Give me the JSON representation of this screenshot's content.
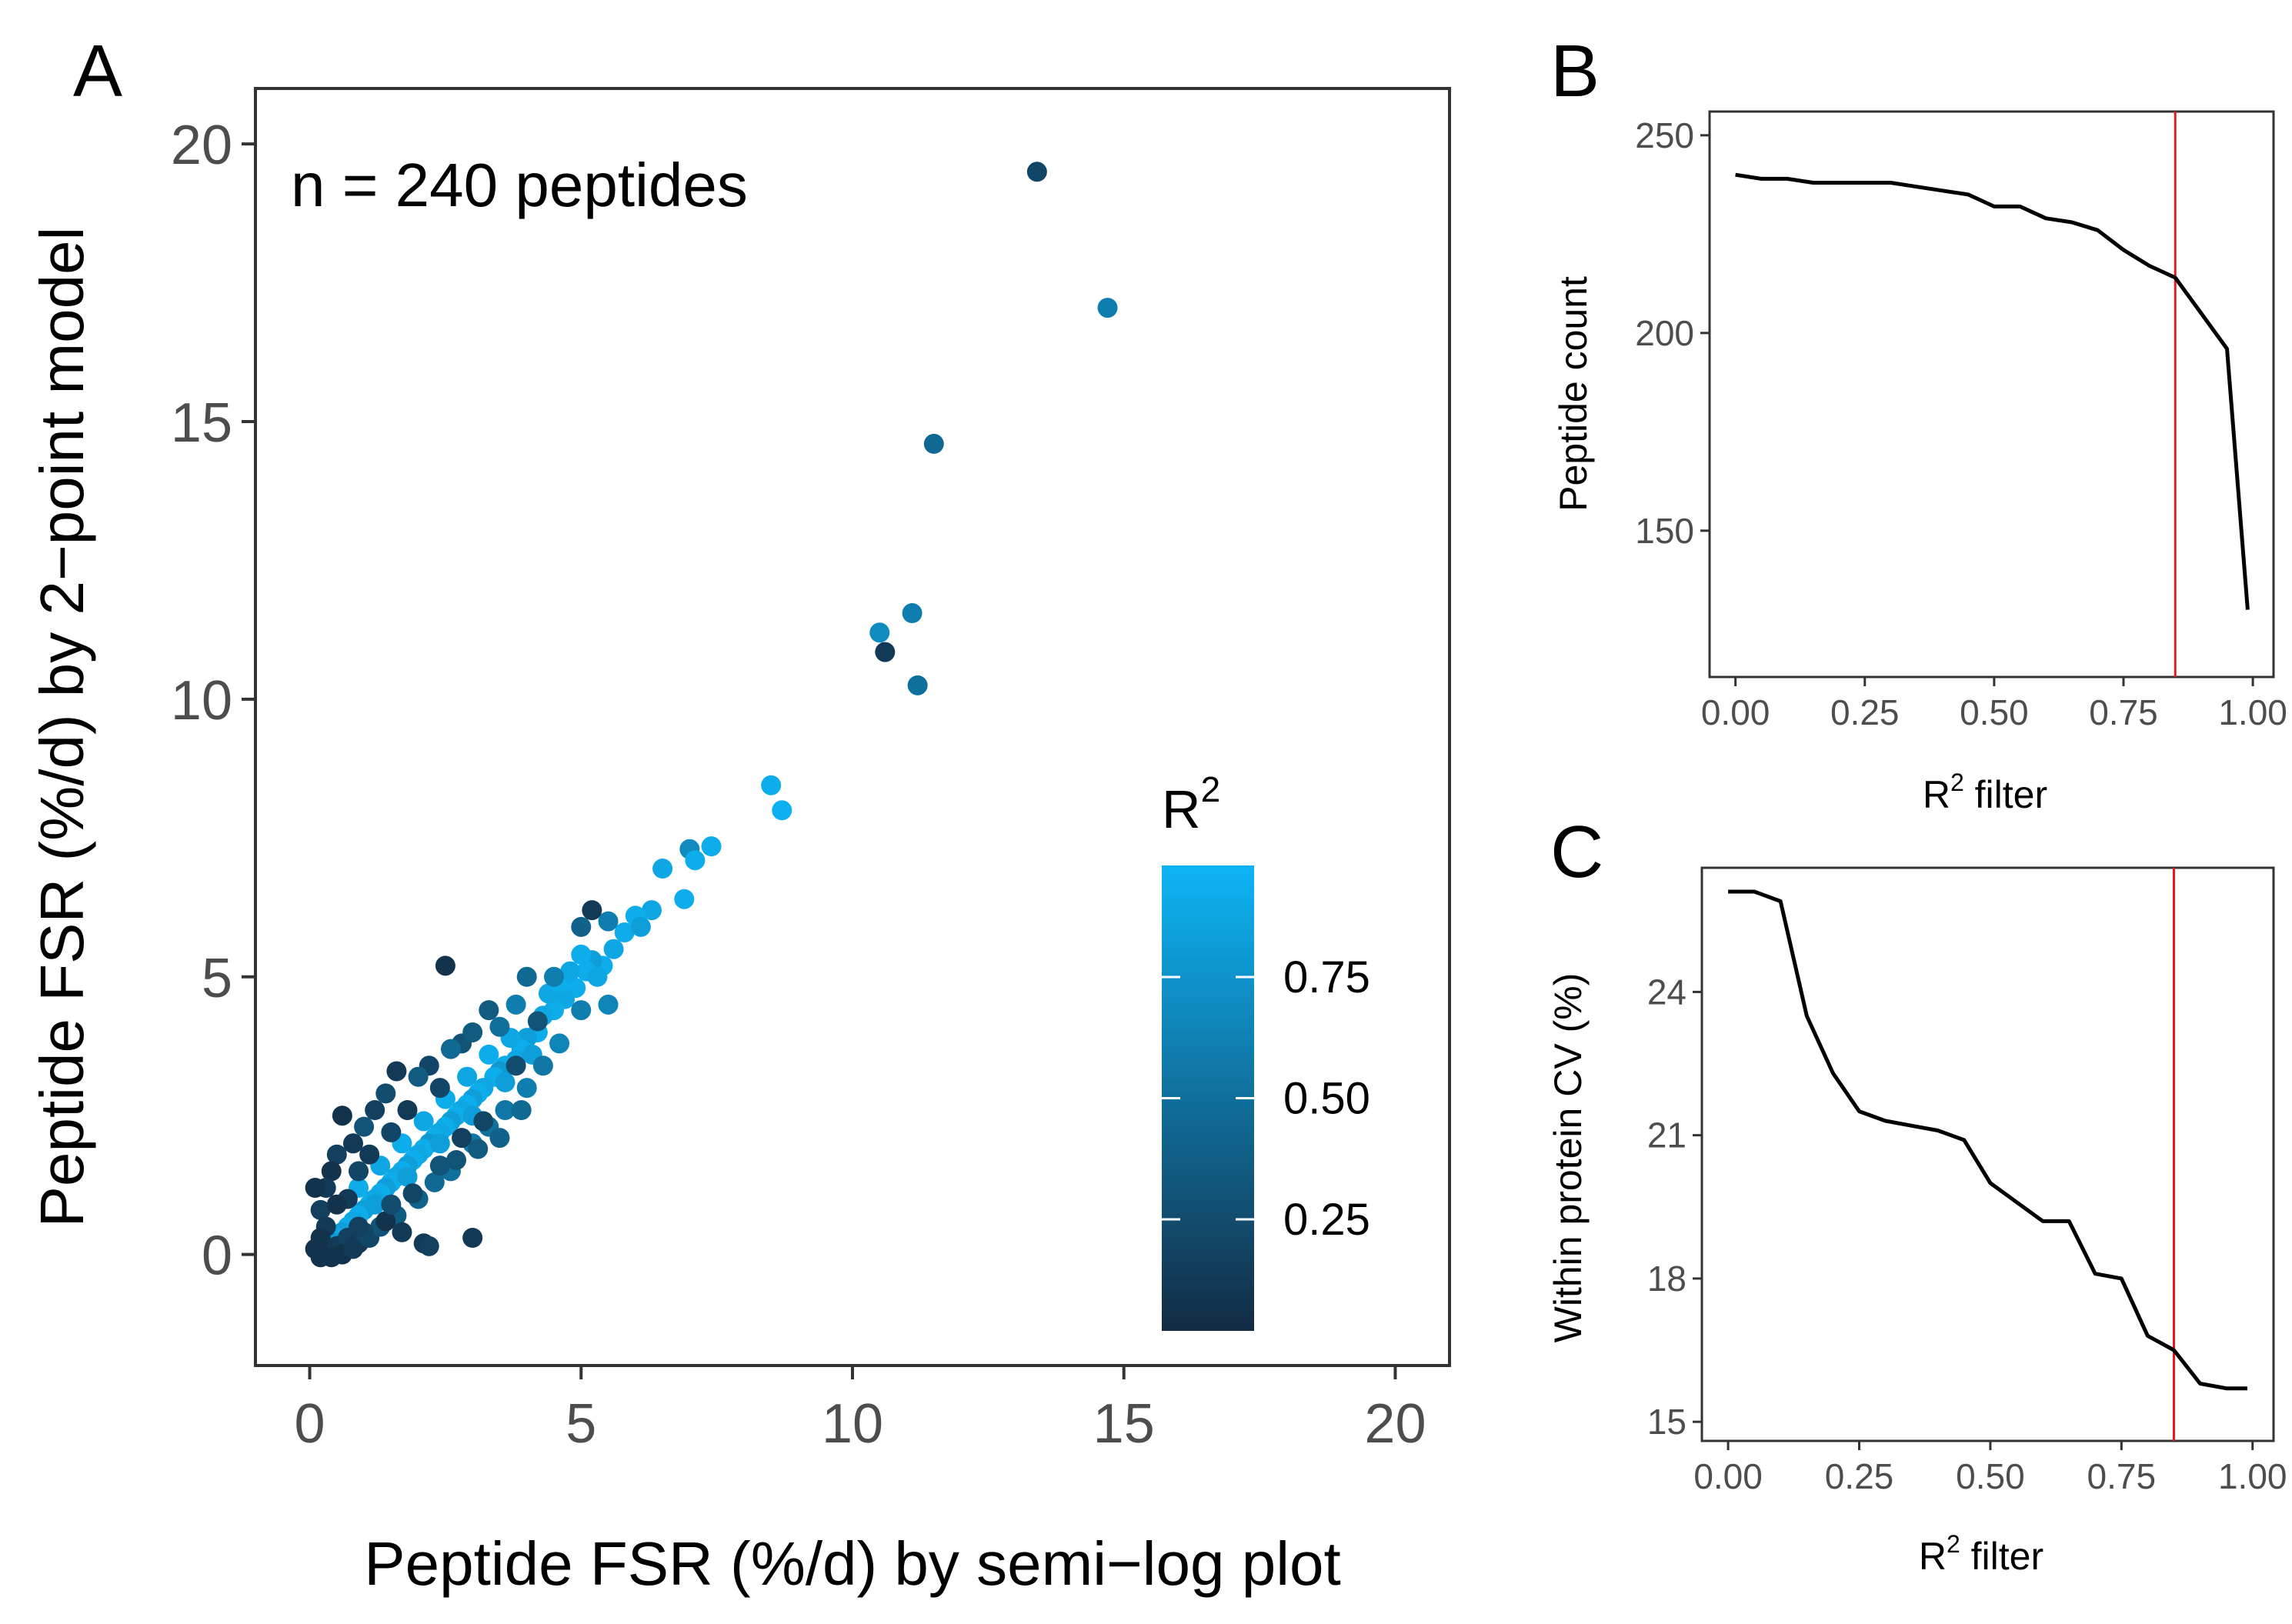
{
  "chart_data": [
    {
      "panel": "A",
      "type": "scatter",
      "xlabel": "Peptide FSR (%/d) by semi−log plot",
      "ylabel": "Peptide FSR (%/d) by 2−point model",
      "xlim": [
        -1,
        21
      ],
      "ylim": [
        -2,
        21
      ],
      "x_ticks": [
        "0",
        "5",
        "10",
        "15",
        "20"
      ],
      "y_ticks": [
        "0",
        "5",
        "10",
        "15",
        "20"
      ],
      "annotation": "n = 240 peptides",
      "legend": {
        "title": "R",
        "title_sup": "2",
        "ticks": [
          "0.25",
          "0.50",
          "0.75"
        ],
        "placement": "inside-right"
      },
      "color_low": "#132b43",
      "color_high": "#0db4f5",
      "points": [
        [
          13.4,
          19.5,
          0.2
        ],
        [
          14.7,
          17.05,
          0.6
        ],
        [
          11.5,
          14.6,
          0.45
        ],
        [
          10.5,
          11.2,
          0.7
        ],
        [
          11.1,
          11.55,
          0.6
        ],
        [
          10.6,
          10.85,
          0.1
        ],
        [
          11.2,
          10.25,
          0.5
        ],
        [
          8.5,
          8.45,
          0.95
        ],
        [
          8.7,
          8.0,
          0.98
        ],
        [
          7.4,
          7.35,
          0.95
        ],
        [
          7.0,
          7.3,
          0.7
        ],
        [
          7.1,
          7.1,
          0.95
        ],
        [
          6.5,
          6.95,
          0.9
        ],
        [
          6.9,
          6.4,
          0.95
        ],
        [
          6.3,
          6.2,
          0.9
        ],
        [
          6.0,
          6.1,
          0.95
        ],
        [
          5.5,
          6.0,
          0.6
        ],
        [
          5.2,
          6.2,
          0.1
        ],
        [
          5.0,
          5.9,
          0.4
        ],
        [
          5.8,
          5.8,
          0.95
        ],
        [
          6.1,
          5.9,
          0.85
        ],
        [
          5.6,
          5.5,
          0.9
        ],
        [
          5.4,
          5.2,
          0.95
        ],
        [
          5.2,
          5.3,
          0.85
        ],
        [
          5.1,
          5.1,
          0.95
        ],
        [
          4.9,
          4.8,
          0.95
        ],
        [
          4.7,
          4.6,
          0.9
        ],
        [
          4.5,
          4.4,
          0.95
        ],
        [
          4.3,
          4.3,
          0.9
        ],
        [
          4.2,
          4.0,
          0.95
        ],
        [
          4.0,
          3.9,
          0.85
        ],
        [
          3.9,
          3.7,
          0.95
        ],
        [
          3.8,
          3.5,
          0.9
        ],
        [
          3.6,
          3.4,
          0.95
        ],
        [
          3.5,
          3.3,
          0.8
        ],
        [
          3.4,
          3.2,
          0.95
        ],
        [
          3.2,
          3.0,
          0.9
        ],
        [
          3.1,
          2.9,
          0.95
        ],
        [
          3.0,
          2.8,
          0.85
        ],
        [
          2.9,
          2.7,
          0.95
        ],
        [
          2.8,
          2.6,
          0.9
        ],
        [
          2.7,
          2.5,
          0.95
        ],
        [
          2.6,
          2.4,
          0.85
        ],
        [
          2.5,
          2.3,
          0.95
        ],
        [
          2.4,
          2.2,
          0.9
        ],
        [
          2.3,
          2.1,
          0.95
        ],
        [
          2.2,
          2.0,
          0.8
        ],
        [
          2.1,
          1.9,
          0.95
        ],
        [
          2.0,
          1.8,
          0.9
        ],
        [
          1.9,
          1.7,
          0.95
        ],
        [
          1.8,
          1.6,
          0.85
        ],
        [
          1.7,
          1.5,
          0.95
        ],
        [
          1.6,
          1.4,
          0.9
        ],
        [
          1.5,
          1.3,
          0.95
        ],
        [
          1.4,
          1.2,
          0.85
        ],
        [
          1.3,
          1.1,
          0.95
        ],
        [
          1.2,
          1.0,
          0.9
        ],
        [
          1.1,
          0.9,
          0.95
        ],
        [
          1.0,
          0.8,
          0.85
        ],
        [
          0.9,
          0.7,
          0.95
        ],
        [
          0.8,
          0.6,
          0.9
        ],
        [
          0.7,
          0.5,
          0.95
        ],
        [
          0.6,
          0.4,
          0.85
        ],
        [
          0.5,
          0.3,
          0.9
        ],
        [
          0.4,
          0.2,
          0.8
        ],
        [
          4.4,
          4.7,
          0.9
        ],
        [
          4.6,
          4.9,
          0.95
        ],
        [
          4.8,
          5.1,
          0.9
        ],
        [
          5.0,
          5.4,
          0.95
        ],
        [
          3.7,
          3.9,
          0.9
        ],
        [
          3.3,
          3.6,
          0.95
        ],
        [
          2.9,
          3.2,
          0.9
        ],
        [
          2.5,
          2.8,
          0.95
        ],
        [
          2.1,
          2.4,
          0.9
        ],
        [
          1.7,
          2.0,
          0.95
        ],
        [
          1.3,
          1.6,
          0.9
        ],
        [
          0.9,
          1.2,
          0.95
        ],
        [
          5.3,
          5.0,
          0.9
        ],
        [
          4.1,
          3.6,
          0.85
        ],
        [
          3.6,
          3.1,
          0.85
        ],
        [
          3.0,
          2.5,
          0.85
        ],
        [
          2.4,
          2.0,
          0.85
        ],
        [
          1.8,
          1.4,
          0.85
        ],
        [
          1.2,
          0.9,
          0.85
        ],
        [
          3.8,
          4.5,
          0.6
        ],
        [
          3.3,
          4.4,
          0.35
        ],
        [
          3.5,
          4.1,
          0.5
        ],
        [
          2.8,
          3.8,
          0.3
        ],
        [
          2.6,
          3.7,
          0.45
        ],
        [
          2.2,
          3.4,
          0.2
        ],
        [
          2.0,
          3.2,
          0.35
        ],
        [
          1.6,
          3.3,
          0.1
        ],
        [
          1.4,
          2.9,
          0.25
        ],
        [
          1.2,
          2.6,
          0.15
        ],
        [
          1.0,
          2.3,
          0.3
        ],
        [
          0.8,
          2.0,
          0.1
        ],
        [
          0.6,
          2.5,
          0.05
        ],
        [
          0.5,
          1.8,
          0.15
        ],
        [
          0.4,
          1.5,
          0.05
        ],
        [
          0.3,
          1.2,
          0.1
        ],
        [
          0.1,
          1.2,
          0.05
        ],
        [
          0.2,
          0.8,
          0.15
        ],
        [
          2.5,
          5.2,
          0.05
        ],
        [
          4.0,
          5.0,
          0.45
        ],
        [
          4.5,
          5.0,
          0.6
        ],
        [
          3.0,
          4.0,
          0.35
        ],
        [
          2.4,
          3.0,
          0.2
        ],
        [
          1.8,
          2.6,
          0.1
        ],
        [
          1.5,
          2.2,
          0.2
        ],
        [
          1.1,
          1.8,
          0.1
        ],
        [
          0.9,
          1.5,
          0.2
        ],
        [
          0.7,
          1.0,
          0.1
        ],
        [
          0.5,
          0.9,
          0.05
        ],
        [
          0.3,
          0.5,
          0.1
        ],
        [
          0.2,
          0.3,
          0.05
        ],
        [
          0.1,
          0.1,
          0.05
        ],
        [
          0.3,
          0.05,
          0.05
        ],
        [
          0.5,
          0.15,
          0.1
        ],
        [
          0.7,
          0.3,
          0.15
        ],
        [
          0.2,
          -0.05,
          0.05
        ],
        [
          0.6,
          0.0,
          0.05
        ],
        [
          0.9,
          0.2,
          0.1
        ],
        [
          1.1,
          0.3,
          0.2
        ],
        [
          1.3,
          0.5,
          0.3
        ],
        [
          1.6,
          0.7,
          0.35
        ],
        [
          2.0,
          1.0,
          0.4
        ],
        [
          2.3,
          1.3,
          0.45
        ],
        [
          2.6,
          1.5,
          0.5
        ],
        [
          3.0,
          2.0,
          0.55
        ],
        [
          3.3,
          2.3,
          0.5
        ],
        [
          3.6,
          2.6,
          0.55
        ],
        [
          4.0,
          3.0,
          0.6
        ],
        [
          4.3,
          3.4,
          0.55
        ],
        [
          4.6,
          3.8,
          0.65
        ],
        [
          5.0,
          4.4,
          0.6
        ],
        [
          5.5,
          4.5,
          0.65
        ],
        [
          3.9,
          2.6,
          0.45
        ],
        [
          3.5,
          2.1,
          0.4
        ],
        [
          3.1,
          1.9,
          0.35
        ],
        [
          2.7,
          1.7,
          0.3
        ],
        [
          2.4,
          1.6,
          0.3
        ],
        [
          2.1,
          0.2,
          0.1
        ],
        [
          2.2,
          0.15,
          0.15
        ],
        [
          3.0,
          0.3,
          0.1
        ],
        [
          1.7,
          0.4,
          0.1
        ],
        [
          1.4,
          0.6,
          0.05
        ],
        [
          0.8,
          0.1,
          0.1
        ],
        [
          1.0,
          0.4,
          0.2
        ],
        [
          4.2,
          4.2,
          0.3
        ],
        [
          3.8,
          3.4,
          0.25
        ],
        [
          3.2,
          2.4,
          0.2
        ],
        [
          2.8,
          2.1,
          0.15
        ],
        [
          1.9,
          1.1,
          0.2
        ],
        [
          1.5,
          0.9,
          0.25
        ],
        [
          0.9,
          0.5,
          0.15
        ],
        [
          0.4,
          -0.05,
          0.05
        ]
      ]
    },
    {
      "panel": "B",
      "type": "line",
      "xlabel": "R",
      "xlabel_sup": "2",
      "xlabel_rest": " filter",
      "ylabel": "Peptide count",
      "xlim": [
        -0.05,
        1.04
      ],
      "ylim": [
        113,
        256
      ],
      "x_ticks": [
        "0.00",
        "0.25",
        "0.50",
        "0.75",
        "1.00"
      ],
      "y_ticks": [
        "150",
        "200",
        "250"
      ],
      "x": [
        0.0,
        0.05,
        0.1,
        0.15,
        0.2,
        0.25,
        0.3,
        0.35,
        0.4,
        0.45,
        0.5,
        0.55,
        0.6,
        0.65,
        0.7,
        0.75,
        0.8,
        0.85,
        0.9,
        0.95,
        0.99
      ],
      "y": [
        240,
        239,
        239,
        238,
        238,
        238,
        238,
        237,
        236,
        235,
        232,
        232,
        229,
        228,
        226,
        221,
        217,
        214,
        205,
        196,
        130
      ],
      "vline_x": 0.85,
      "vline_color": "#e41a1c"
    },
    {
      "panel": "C",
      "type": "line",
      "xlabel": "R",
      "xlabel_sup": "2",
      "xlabel_rest": " filter",
      "ylabel": "Within protein CV (%)",
      "xlim": [
        -0.05,
        1.04
      ],
      "ylim": [
        14.6,
        26.6
      ],
      "x_ticks": [
        "0.00",
        "0.25",
        "0.50",
        "0.75",
        "1.00"
      ],
      "y_ticks": [
        "15",
        "18",
        "21",
        "24"
      ],
      "x": [
        0.0,
        0.05,
        0.1,
        0.15,
        0.2,
        0.25,
        0.3,
        0.35,
        0.4,
        0.45,
        0.5,
        0.55,
        0.6,
        0.65,
        0.7,
        0.75,
        0.8,
        0.85,
        0.9,
        0.95,
        0.99
      ],
      "y": [
        26.1,
        26.1,
        25.9,
        23.5,
        22.3,
        21.5,
        21.3,
        21.2,
        21.1,
        20.9,
        20.0,
        19.6,
        19.2,
        19.2,
        18.1,
        18.0,
        16.8,
        16.5,
        15.8,
        15.7,
        15.7
      ],
      "vline_x": 0.85,
      "vline_color": "#e41a1c"
    }
  ]
}
